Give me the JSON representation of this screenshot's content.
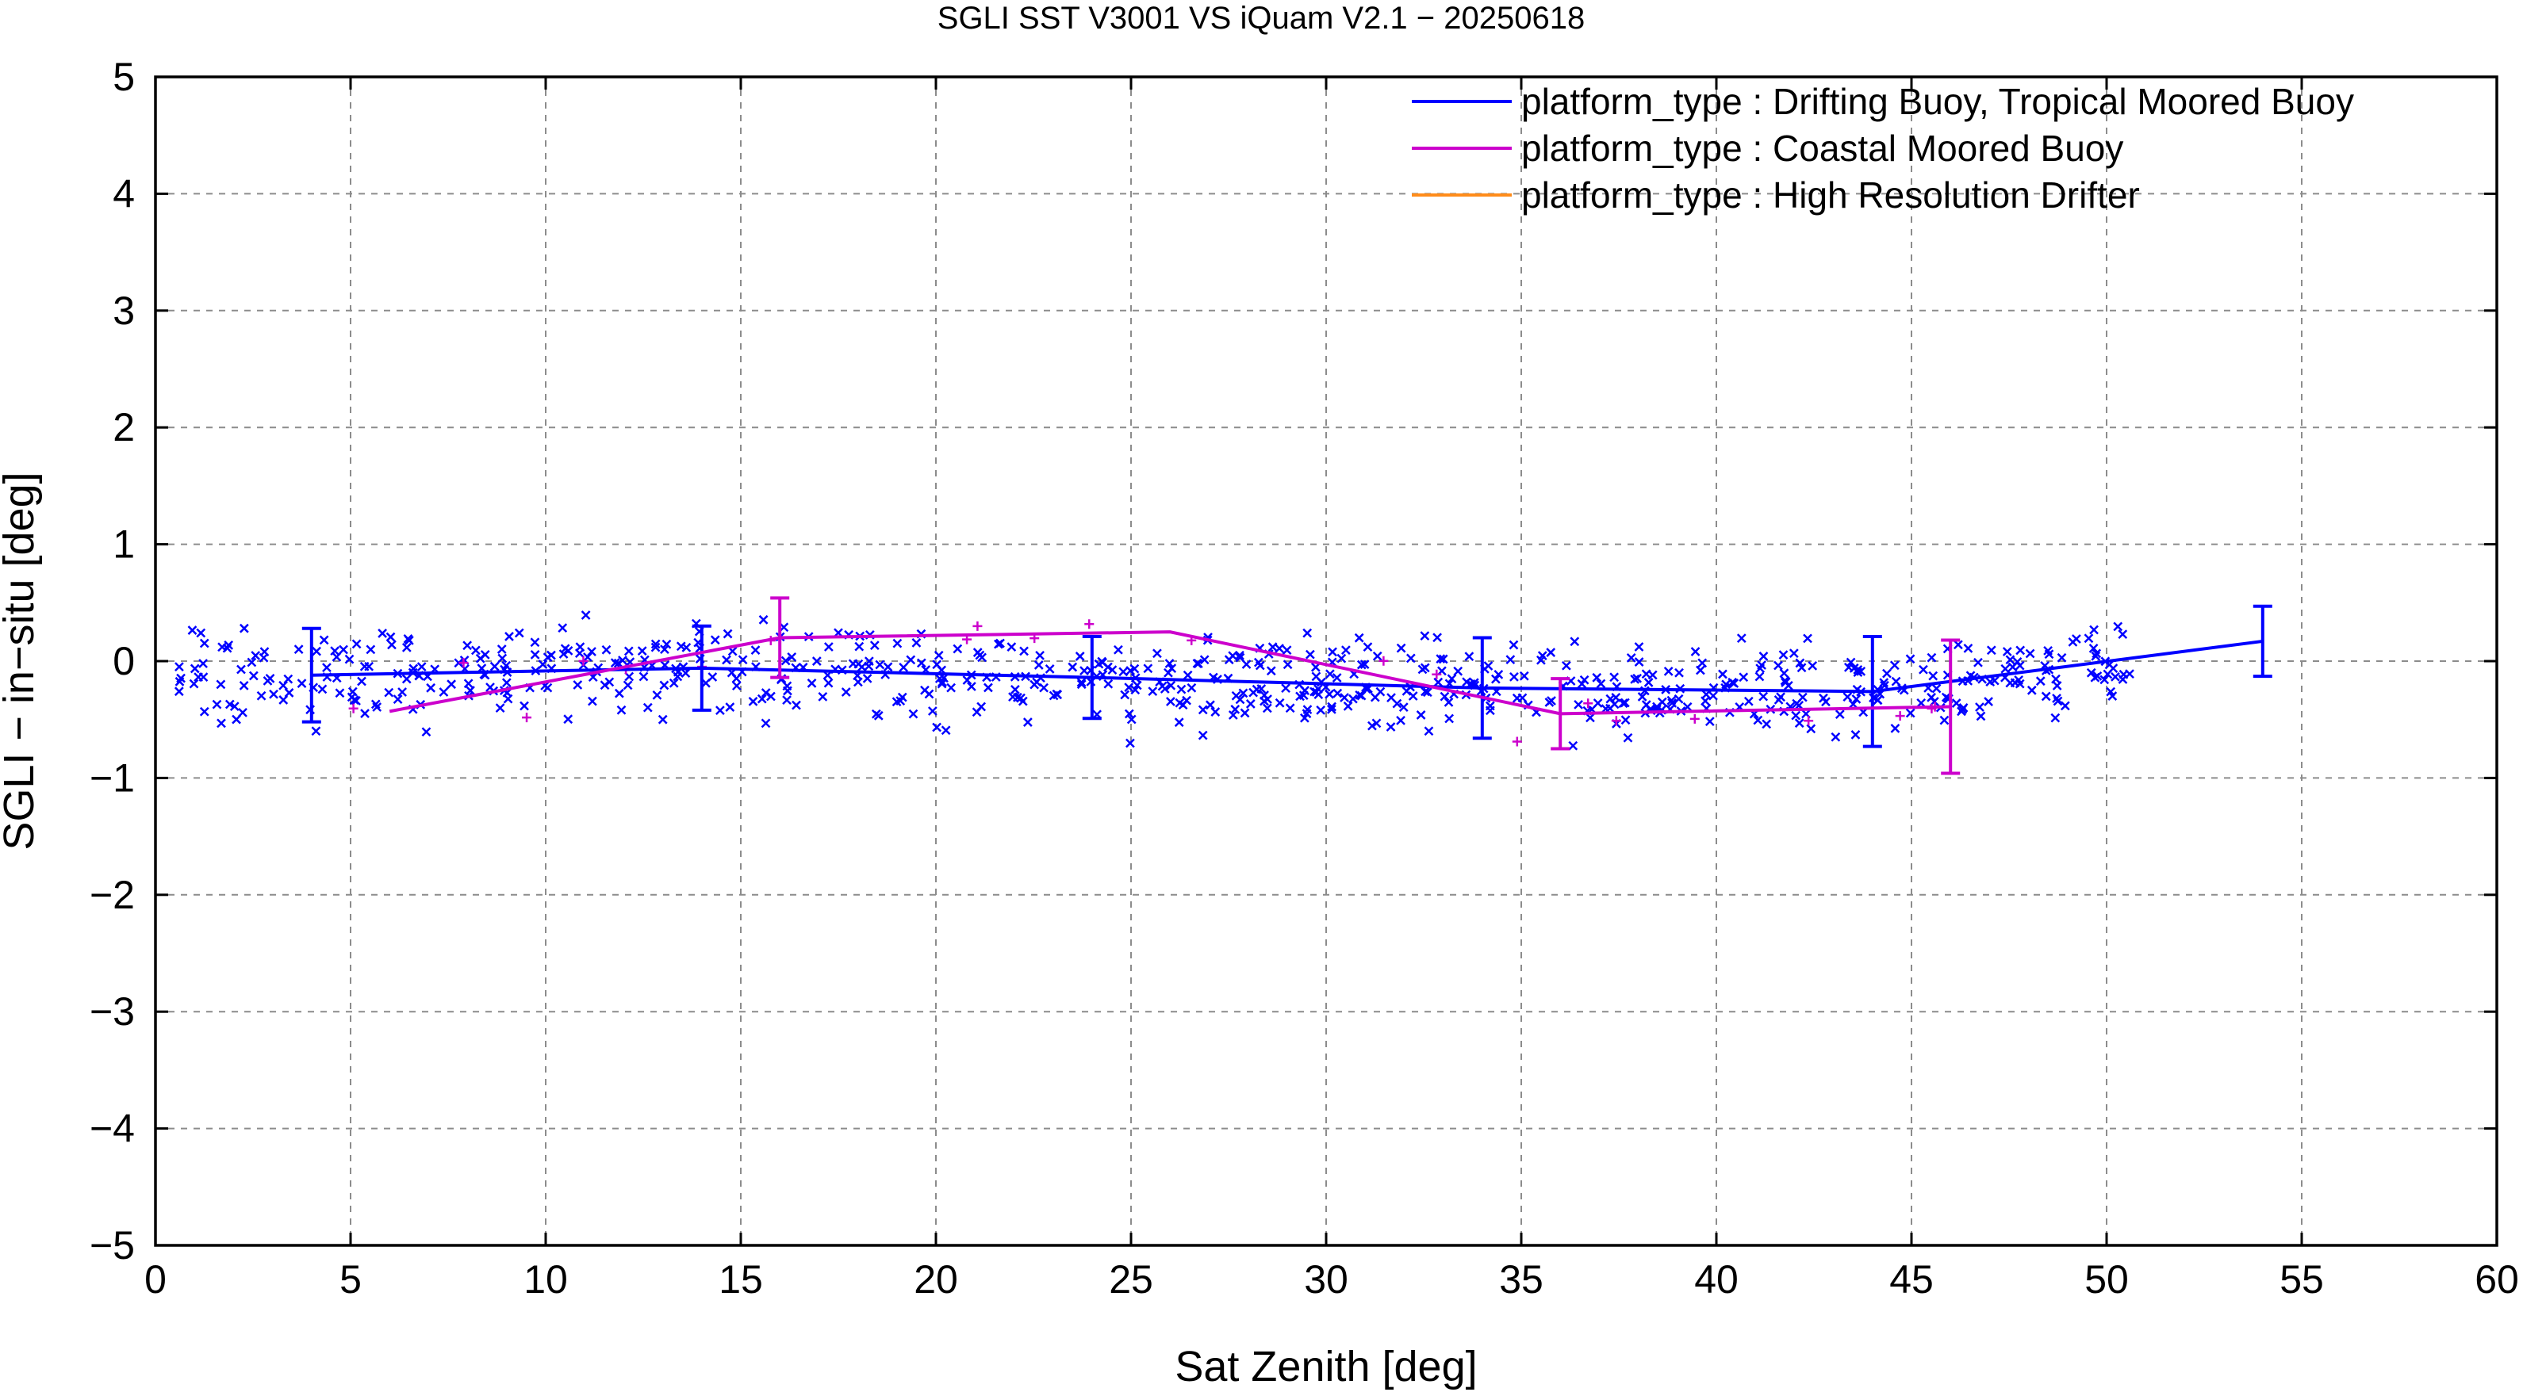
{
  "chart_data": {
    "type": "scatter",
    "title": "SGLI SST V3001 VS iQuam V2.1  − 20250618",
    "xlabel": "Sat Zenith [deg]",
    "ylabel": "SGLI − in−situ [deg]",
    "xlim": [
      0,
      60
    ],
    "ylim": [
      -5,
      5
    ],
    "xticks": [
      0,
      5,
      10,
      15,
      20,
      25,
      30,
      35,
      40,
      45,
      50,
      55,
      60
    ],
    "yticks": [
      -5,
      -4,
      -3,
      -2,
      -1,
      0,
      1,
      2,
      3,
      4,
      5
    ],
    "xtick_labels": [
      "0",
      "5",
      "10",
      "15",
      "20",
      "25",
      "30",
      "35",
      "40",
      "45",
      "50",
      "55",
      "60"
    ],
    "ytick_labels": [
      "−5",
      "−4",
      "−3",
      "−2",
      "−1",
      "0",
      "1",
      "2",
      "3",
      "4",
      "5"
    ],
    "grid": true,
    "legend_position": "top-right",
    "series": [
      {
        "name": "platform_type : Drifting Buoy, Tropical Moored Buoy",
        "color": "#0000ff",
        "marker": "x",
        "mean_line": {
          "x": [
            4,
            14,
            24,
            34,
            44,
            54
          ],
          "y": [
            -0.12,
            -0.06,
            -0.14,
            -0.23,
            -0.26,
            0.17
          ],
          "err": [
            0.4,
            0.36,
            0.35,
            0.43,
            0.47,
            0.3
          ]
        }
      },
      {
        "name": "platform_type : Coastal Moored Buoy",
        "color": "#cc00cc",
        "marker": "+",
        "mean_line": {
          "x": [
            6,
            16,
            26,
            36,
            46
          ],
          "y": [
            -0.43,
            0.2,
            0.25,
            -0.45,
            -0.39
          ],
          "err": [
            0,
            0.34,
            0,
            0.3,
            0.57
          ]
        }
      },
      {
        "name": "platform_type : High Resolution Drifter",
        "color": "#ff8c1a",
        "marker": "x",
        "mean_line": {
          "x": [],
          "y": [],
          "err": []
        }
      }
    ]
  }
}
